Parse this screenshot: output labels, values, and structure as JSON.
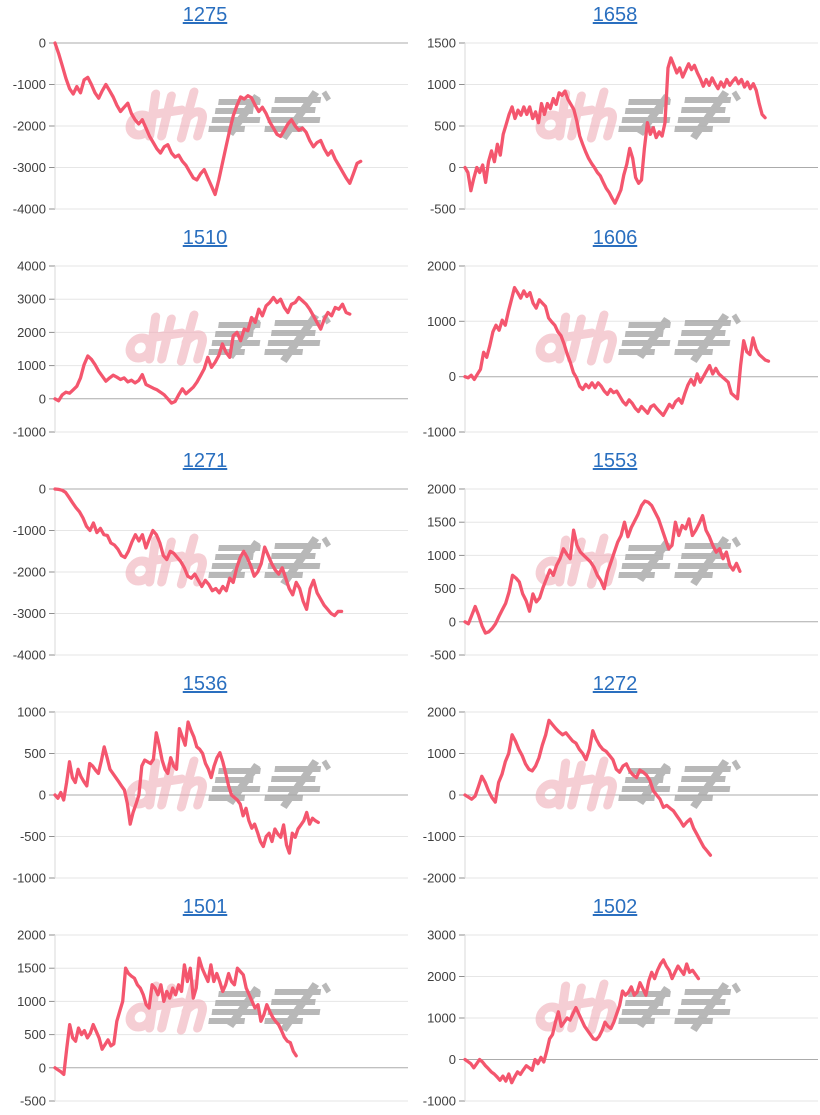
{
  "page": {
    "background": "#ffffff"
  },
  "watermark": {
    "text": "みんレポ",
    "pink_color": "#eeA9b4",
    "gray_color": "#a7a7a7",
    "opacity": 0.8
  },
  "chart_style": {
    "line_color": "#f4566e",
    "grid_color": "#e6e6e6",
    "zero_line_color": "#ababab",
    "axis_line_color": "#d9d9d9",
    "tick_color": "#8f8f8f",
    "label_color": "#3f3f3f",
    "title_color": "#2a6fbf"
  },
  "chart_data": [
    {
      "title": "1275",
      "type": "line",
      "x_slots": 98,
      "y_ticks": [
        0,
        -1000,
        -2000,
        -3000,
        -4000
      ],
      "ylim": [
        -4000,
        0
      ],
      "grid": true,
      "legend": "none",
      "values": [
        0,
        -250,
        -550,
        -850,
        -1100,
        -1230,
        -1050,
        -1200,
        -890,
        -830,
        -1000,
        -1200,
        -1330,
        -1150,
        -1000,
        -1150,
        -1300,
        -1500,
        -1650,
        -1550,
        -1450,
        -1700,
        -1850,
        -1950,
        -1850,
        -2050,
        -2250,
        -2400,
        -2550,
        -2650,
        -2500,
        -2450,
        -2650,
        -2750,
        -2700,
        -2850,
        -2950,
        -3100,
        -3250,
        -3300,
        -3150,
        -3050,
        -3250,
        -3450,
        -3650,
        -3300,
        -2900,
        -2500,
        -2100,
        -1750,
        -1500,
        -1300,
        -1350,
        -1270,
        -1320,
        -1500,
        -1650,
        -1550,
        -1700,
        -1900,
        -2050,
        -2200,
        -2250,
        -2100,
        -1950,
        -1850,
        -2000,
        -2100,
        -2050,
        -2150,
        -2350,
        -2500,
        -2400,
        -2350,
        -2550,
        -2700,
        -2600,
        -2800,
        -2950,
        -3100,
        -3250,
        -3380,
        -3150,
        -2900,
        -2850
      ]
    },
    {
      "title": "1658",
      "type": "line",
      "x_slots": 121,
      "y_ticks": [
        1500,
        1000,
        500,
        0,
        -500
      ],
      "ylim": [
        -500,
        1500
      ],
      "grid": true,
      "legend": "none",
      "values": [
        0,
        -60,
        -280,
        -130,
        0,
        -60,
        30,
        -180,
        70,
        200,
        70,
        280,
        150,
        400,
        520,
        640,
        730,
        590,
        690,
        630,
        730,
        640,
        730,
        590,
        670,
        540,
        770,
        640,
        770,
        710,
        830,
        760,
        900,
        870,
        920,
        820,
        760,
        700,
        560,
        380,
        280,
        190,
        110,
        50,
        0,
        -60,
        -100,
        -180,
        -250,
        -300,
        -370,
        -430,
        -350,
        -270,
        -90,
        40,
        230,
        110,
        -120,
        -190,
        -150,
        230,
        540,
        400,
        480,
        360,
        430,
        380,
        540,
        1200,
        1320,
        1230,
        1140,
        1200,
        1090,
        1170,
        1250,
        1180,
        1230,
        1140,
        1070,
        980,
        1060,
        990,
        1080,
        1010,
        950,
        1030,
        970,
        1060,
        990,
        1040,
        1080,
        1010,
        1060,
        970,
        1030,
        950,
        1010,
        930,
        770,
        640,
        600
      ]
    },
    {
      "title": "1510",
      "type": "line",
      "x_slots": 98,
      "y_ticks": [
        4000,
        3000,
        2000,
        1000,
        0,
        -1000
      ],
      "ylim": [
        -1000,
        4000
      ],
      "grid": true,
      "legend": "none",
      "values": [
        0,
        -60,
        120,
        200,
        170,
        270,
        375,
        630,
        1030,
        1290,
        1190,
        1030,
        830,
        680,
        530,
        630,
        710,
        650,
        580,
        630,
        510,
        560,
        480,
        550,
        730,
        430,
        375,
        320,
        270,
        200,
        120,
        0,
        -130,
        -80,
        120,
        300,
        150,
        250,
        350,
        500,
        700,
        900,
        1250,
        950,
        1100,
        1300,
        1650,
        1400,
        1250,
        1900,
        2000,
        1750,
        2100,
        2050,
        2450,
        2300,
        2700,
        2500,
        2800,
        2900,
        3050,
        2900,
        3000,
        2750,
        2600,
        2850,
        2900,
        3050,
        2950,
        2850,
        2700,
        2500,
        2300,
        2100,
        2400,
        2600,
        2500,
        2750,
        2700,
        2850,
        2600,
        2550
      ]
    },
    {
      "title": "1606",
      "type": "line",
      "x_slots": 115,
      "y_ticks": [
        2000,
        1000,
        0,
        -1000
      ],
      "ylim": [
        -1000,
        2000
      ],
      "grid": true,
      "legend": "none",
      "values": [
        0,
        -20,
        25,
        -50,
        45,
        135,
        440,
        350,
        560,
        810,
        930,
        840,
        1020,
        930,
        1180,
        1390,
        1610,
        1520,
        1420,
        1550,
        1450,
        1520,
        1330,
        1240,
        1390,
        1330,
        1270,
        1060,
        990,
        930,
        810,
        740,
        590,
        410,
        260,
        75,
        -20,
        -170,
        -230,
        -140,
        -200,
        -110,
        -200,
        -110,
        -170,
        -260,
        -320,
        -230,
        -290,
        -260,
        -355,
        -450,
        -510,
        -420,
        -480,
        -570,
        -630,
        -540,
        -600,
        -660,
        -545,
        -510,
        -580,
        -640,
        -700,
        -600,
        -500,
        -560,
        -450,
        -400,
        -480,
        -300,
        -150,
        -50,
        -150,
        50,
        -100,
        0,
        100,
        200,
        50,
        150,
        50,
        0,
        -50,
        -100,
        -300,
        -350,
        -400,
        200,
        650,
        450,
        400,
        700,
        500,
        400,
        350,
        300,
        280
      ]
    },
    {
      "title": "1271",
      "type": "line",
      "x_slots": 102,
      "y_ticks": [
        0,
        -1000,
        -2000,
        -3000,
        -4000
      ],
      "ylim": [
        -4000,
        0
      ],
      "grid": true,
      "legend": "none",
      "values": [
        0,
        -10,
        -30,
        -80,
        -200,
        -330,
        -450,
        -550,
        -700,
        -900,
        -1000,
        -820,
        -1050,
        -950,
        -1100,
        -1120,
        -1300,
        -1350,
        -1450,
        -1600,
        -1650,
        -1500,
        -1280,
        -1100,
        -1250,
        -1100,
        -1420,
        -1200,
        -1000,
        -1100,
        -1300,
        -1600,
        -1700,
        -1500,
        -1550,
        -1650,
        -1750,
        -1900,
        -2100,
        -2150,
        -2050,
        -2200,
        -2350,
        -2200,
        -2300,
        -2450,
        -2400,
        -2500,
        -2350,
        -2450,
        -2150,
        -2250,
        -1900,
        -1650,
        -1500,
        -1650,
        -1850,
        -2100,
        -2000,
        -1800,
        -1400,
        -1600,
        -1800,
        -1950,
        -2050,
        -1900,
        -2150,
        -2400,
        -2550,
        -2250,
        -2400,
        -2700,
        -2900,
        -2400,
        -2200,
        -2500,
        -2650,
        -2800,
        -2900,
        -3000,
        -3050,
        -2950,
        -2950
      ]
    },
    {
      "title": "1553",
      "type": "line",
      "x_slots": 105,
      "y_ticks": [
        2000,
        1500,
        1000,
        500,
        0,
        -500
      ],
      "ylim": [
        -500,
        2000
      ],
      "grid": true,
      "legend": "none",
      "values": [
        0,
        -30,
        100,
        230,
        100,
        -60,
        -170,
        -150,
        -100,
        -30,
        80,
        180,
        280,
        450,
        700,
        660,
        600,
        420,
        320,
        160,
        420,
        300,
        360,
        520,
        650,
        780,
        700,
        850,
        950,
        1100,
        1020,
        950,
        1380,
        1150,
        1050,
        1000,
        950,
        900,
        820,
        700,
        620,
        500,
        750,
        900,
        1050,
        1200,
        1300,
        1500,
        1280,
        1420,
        1520,
        1620,
        1750,
        1820,
        1800,
        1750,
        1650,
        1550,
        1400,
        1250,
        1100,
        1150,
        1500,
        1300,
        1450,
        1400,
        1550,
        1300,
        1380,
        1480,
        1600,
        1380,
        1280,
        1150,
        1050,
        1100,
        950,
        1050,
        850,
        780,
        880,
        760
      ]
    },
    {
      "title": "1536",
      "type": "line",
      "x_slots": 123,
      "y_ticks": [
        1000,
        500,
        0,
        -500,
        -1000
      ],
      "ylim": [
        -1000,
        1000
      ],
      "grid": true,
      "legend": "none",
      "values": [
        0,
        -40,
        30,
        -60,
        150,
        400,
        210,
        150,
        310,
        220,
        160,
        110,
        380,
        350,
        300,
        260,
        410,
        580,
        450,
        310,
        260,
        210,
        160,
        110,
        60,
        -100,
        -350,
        -210,
        -110,
        0,
        350,
        420,
        400,
        380,
        430,
        750,
        600,
        420,
        310,
        260,
        450,
        350,
        310,
        800,
        700,
        600,
        880,
        780,
        700,
        580,
        550,
        500,
        380,
        310,
        210,
        350,
        450,
        510,
        400,
        260,
        110,
        0,
        -30,
        -60,
        -110,
        -250,
        -160,
        -310,
        -400,
        -350,
        -450,
        -560,
        -620,
        -500,
        -460,
        -560,
        -410,
        -470,
        -510,
        -360,
        -600,
        -700,
        -460,
        -510,
        -410,
        -360,
        -310,
        -210,
        -350,
        -280,
        -310,
        -330
      ]
    },
    {
      "title": "1272",
      "type": "line",
      "x_slots": 106,
      "y_ticks": [
        2000,
        1000,
        0,
        -1000,
        -2000
      ],
      "ylim": [
        -2000,
        2000
      ],
      "grid": true,
      "legend": "none",
      "values": [
        0,
        -50,
        -100,
        -30,
        200,
        450,
        300,
        100,
        -60,
        -170,
        300,
        500,
        800,
        1000,
        1450,
        1300,
        1100,
        950,
        750,
        620,
        580,
        700,
        900,
        1200,
        1450,
        1800,
        1700,
        1600,
        1520,
        1450,
        1500,
        1400,
        1300,
        1250,
        1100,
        1000,
        850,
        1100,
        1550,
        1350,
        1200,
        1100,
        1050,
        950,
        850,
        620,
        550,
        700,
        750,
        580,
        480,
        420,
        600,
        550,
        480,
        350,
        100,
        0,
        -100,
        -300,
        -250,
        -320,
        -380,
        -500,
        -620,
        -750,
        -650,
        -580,
        -800,
        -950,
        -1100,
        -1250,
        -1350,
        -1450
      ]
    },
    {
      "title": "1501",
      "type": "line",
      "x_slots": 121,
      "y_ticks": [
        2000,
        1500,
        1000,
        500,
        0,
        -500
      ],
      "ylim": [
        -500,
        2000
      ],
      "grid": true,
      "legend": "none",
      "values": [
        0,
        -30,
        -60,
        -100,
        300,
        650,
        450,
        400,
        600,
        500,
        560,
        450,
        520,
        650,
        550,
        450,
        280,
        350,
        420,
        330,
        360,
        700,
        850,
        1000,
        1500,
        1420,
        1380,
        1350,
        1250,
        1200,
        1100,
        950,
        900,
        1250,
        1200,
        1100,
        1250,
        1000,
        1150,
        1050,
        1200,
        1100,
        1250,
        1150,
        1550,
        1300,
        1500,
        1050,
        1200,
        1650,
        1500,
        1400,
        1300,
        1550,
        1300,
        1420,
        1300,
        1150,
        1250,
        1420,
        1300,
        1250,
        1500,
        1450,
        1400,
        1200,
        1100,
        1000,
        900,
        950,
        700,
        800,
        950,
        850,
        760,
        700,
        650,
        560,
        460,
        400,
        380,
        250,
        180
      ]
    },
    {
      "title": "1502",
      "type": "line",
      "x_slots": 122,
      "y_ticks": [
        3000,
        2000,
        1000,
        0,
        -1000
      ],
      "ylim": [
        -1000,
        3000
      ],
      "grid": true,
      "legend": "none",
      "values": [
        0,
        -50,
        -100,
        -200,
        -100,
        0,
        -60,
        -150,
        -220,
        -300,
        -350,
        -420,
        -500,
        -400,
        -520,
        -350,
        -560,
        -420,
        -300,
        -360,
        -250,
        -150,
        -200,
        -260,
        0,
        -100,
        50,
        -60,
        200,
        500,
        600,
        900,
        1150,
        800,
        900,
        1000,
        950,
        1100,
        1250,
        1100,
        950,
        800,
        700,
        600,
        500,
        480,
        560,
        700,
        900,
        800,
        750,
        900,
        1100,
        1300,
        1650,
        1550,
        1620,
        1750,
        1550,
        1620,
        1850,
        1700,
        1550,
        1900,
        2100,
        1950,
        2150,
        2300,
        2400,
        2250,
        2150,
        1950,
        2100,
        2250,
        2150,
        2050,
        2300,
        2100,
        2150,
        2050,
        1950
      ]
    }
  ]
}
